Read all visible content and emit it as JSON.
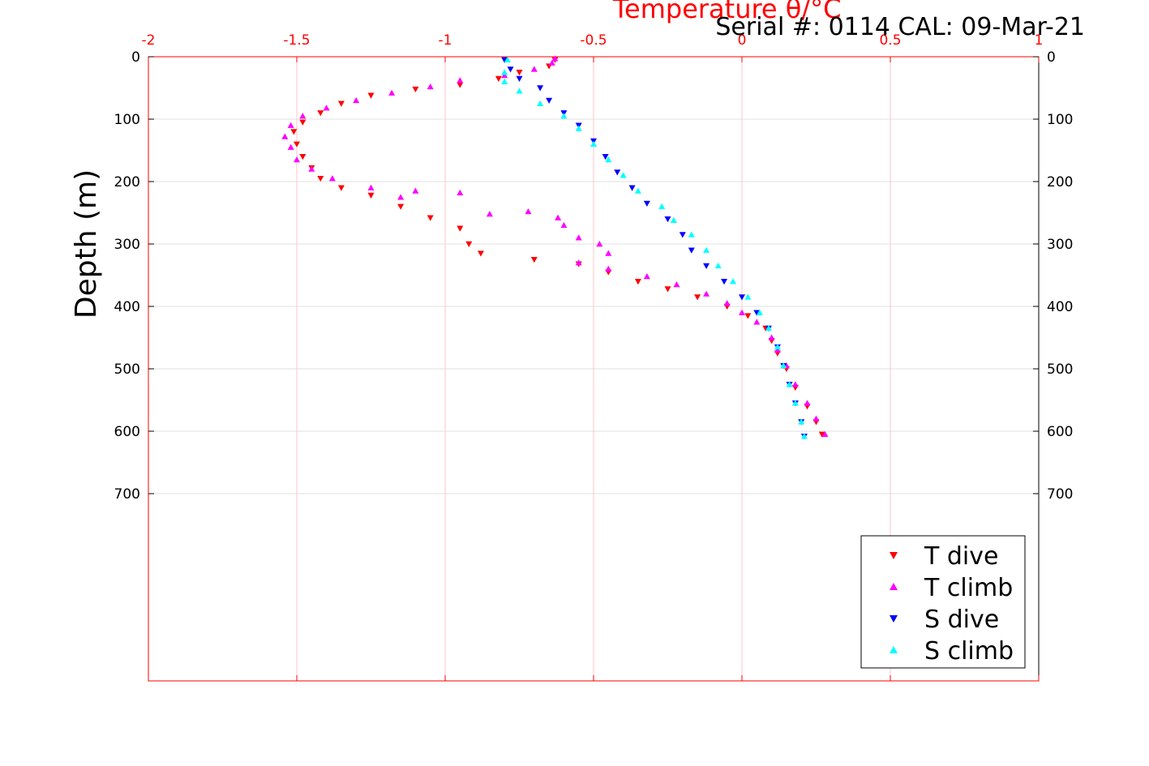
{
  "header": {
    "serial_text": "Serial #: 0114  CAL: 09-Mar-21"
  },
  "colors": {
    "axis_red": "#ff0000",
    "grid_pink": "#ffb6c1",
    "grid_gray": "#d9d9d9",
    "t_dive": "#ff0000",
    "t_climb": "#ff00ff",
    "s_dive": "#0000ff",
    "s_climb": "#00ffff"
  },
  "chart_data": {
    "type": "scatter",
    "title": "",
    "xlabel": "Temperature θ/°C",
    "ylabel": "Depth (m)",
    "xlim": [
      -2,
      1
    ],
    "ylim": [
      0,
      1000
    ],
    "y_reversed": true,
    "x_ticks": [
      -2,
      -1.5,
      -1,
      -0.5,
      0,
      0.5,
      1
    ],
    "x_tick_labels": [
      "-2",
      "-1.5",
      "-1",
      "-0.5",
      "0",
      "0.5",
      "1"
    ],
    "y_ticks": [
      0,
      100,
      200,
      300,
      400,
      500,
      600,
      700
    ],
    "y_tick_labels": [
      "0",
      "100",
      "200",
      "300",
      "400",
      "500",
      "600",
      "700"
    ],
    "grid": true,
    "legend_position": "bottom-right",
    "series": [
      {
        "name": "T dive",
        "marker": "triangle-down",
        "color": "#ff0000",
        "points": [
          [
            -0.63,
            5
          ],
          [
            -0.65,
            15
          ],
          [
            -0.75,
            25
          ],
          [
            -0.82,
            35
          ],
          [
            -0.95,
            45
          ],
          [
            -1.1,
            52
          ],
          [
            -1.25,
            62
          ],
          [
            -1.35,
            75
          ],
          [
            -1.42,
            90
          ],
          [
            -1.48,
            105
          ],
          [
            -1.51,
            120
          ],
          [
            -1.5,
            140
          ],
          [
            -1.48,
            160
          ],
          [
            -1.45,
            178
          ],
          [
            -1.42,
            195
          ],
          [
            -1.35,
            210
          ],
          [
            -1.25,
            222
          ],
          [
            -1.15,
            240
          ],
          [
            -1.05,
            258
          ],
          [
            -0.95,
            275
          ],
          [
            -0.92,
            300
          ],
          [
            -0.88,
            315
          ],
          [
            -0.7,
            325
          ],
          [
            -0.55,
            332
          ],
          [
            -0.45,
            345
          ],
          [
            -0.35,
            360
          ],
          [
            -0.25,
            372
          ],
          [
            -0.15,
            385
          ],
          [
            -0.05,
            400
          ],
          [
            0.02,
            415
          ],
          [
            0.08,
            435
          ],
          [
            0.1,
            455
          ],
          [
            0.12,
            475
          ],
          [
            0.15,
            500
          ],
          [
            0.18,
            530
          ],
          [
            0.22,
            560
          ],
          [
            0.25,
            585
          ],
          [
            0.27,
            605
          ]
        ]
      },
      {
        "name": "T climb",
        "marker": "triangle-up",
        "color": "#ff00ff",
        "points": [
          [
            0.28,
            605
          ],
          [
            0.25,
            580
          ],
          [
            0.22,
            555
          ],
          [
            0.18,
            525
          ],
          [
            0.15,
            495
          ],
          [
            0.12,
            470
          ],
          [
            0.1,
            450
          ],
          [
            0.05,
            425
          ],
          [
            0.0,
            410
          ],
          [
            -0.05,
            395
          ],
          [
            -0.12,
            380
          ],
          [
            -0.22,
            365
          ],
          [
            -0.32,
            352
          ],
          [
            -0.45,
            340
          ],
          [
            -0.55,
            330
          ],
          [
            -0.45,
            315
          ],
          [
            -0.48,
            300
          ],
          [
            -0.55,
            290
          ],
          [
            -0.6,
            270
          ],
          [
            -0.62,
            258
          ],
          [
            -0.72,
            248
          ],
          [
            -0.85,
            252
          ],
          [
            -0.95,
            218
          ],
          [
            -1.1,
            215
          ],
          [
            -1.15,
            225
          ],
          [
            -1.25,
            210
          ],
          [
            -1.38,
            195
          ],
          [
            -1.45,
            180
          ],
          [
            -1.5,
            165
          ],
          [
            -1.52,
            145
          ],
          [
            -1.54,
            128
          ],
          [
            -1.52,
            110
          ],
          [
            -1.48,
            95
          ],
          [
            -1.4,
            82
          ],
          [
            -1.3,
            70
          ],
          [
            -1.18,
            58
          ],
          [
            -1.05,
            48
          ],
          [
            -0.95,
            38
          ],
          [
            -0.8,
            30
          ],
          [
            -0.7,
            20
          ],
          [
            -0.64,
            10
          ],
          [
            -0.63,
            3
          ]
        ]
      },
      {
        "name": "S dive",
        "marker": "triangle-down",
        "color": "#0000ff",
        "points": [
          [
            -0.8,
            5
          ],
          [
            -0.78,
            20
          ],
          [
            -0.75,
            35
          ],
          [
            -0.68,
            50
          ],
          [
            -0.65,
            70
          ],
          [
            -0.6,
            90
          ],
          [
            -0.55,
            110
          ],
          [
            -0.5,
            135
          ],
          [
            -0.46,
            160
          ],
          [
            -0.42,
            185
          ],
          [
            -0.37,
            210
          ],
          [
            -0.32,
            235
          ],
          [
            -0.25,
            260
          ],
          [
            -0.2,
            285
          ],
          [
            -0.17,
            310
          ],
          [
            -0.12,
            335
          ],
          [
            -0.06,
            360
          ],
          [
            0.0,
            385
          ],
          [
            0.05,
            410
          ],
          [
            0.09,
            435
          ],
          [
            0.12,
            465
          ],
          [
            0.14,
            495
          ],
          [
            0.16,
            525
          ],
          [
            0.18,
            555
          ],
          [
            0.2,
            585
          ],
          [
            0.21,
            608
          ]
        ]
      },
      {
        "name": "S climb",
        "marker": "triangle-up",
        "color": "#00ffff",
        "points": [
          [
            0.21,
            608
          ],
          [
            0.2,
            585
          ],
          [
            0.18,
            555
          ],
          [
            0.16,
            525
          ],
          [
            0.14,
            495
          ],
          [
            0.12,
            465
          ],
          [
            0.09,
            435
          ],
          [
            0.06,
            410
          ],
          [
            0.02,
            385
          ],
          [
            -0.03,
            360
          ],
          [
            -0.08,
            335
          ],
          [
            -0.12,
            310
          ],
          [
            -0.17,
            285
          ],
          [
            -0.23,
            262
          ],
          [
            -0.27,
            240
          ],
          [
            -0.35,
            215
          ],
          [
            -0.4,
            190
          ],
          [
            -0.45,
            165
          ],
          [
            -0.5,
            140
          ],
          [
            -0.55,
            115
          ],
          [
            -0.6,
            95
          ],
          [
            -0.68,
            75
          ],
          [
            -0.75,
            55
          ],
          [
            -0.8,
            40
          ],
          [
            -0.8,
            25
          ],
          [
            -0.79,
            5
          ]
        ]
      }
    ]
  }
}
